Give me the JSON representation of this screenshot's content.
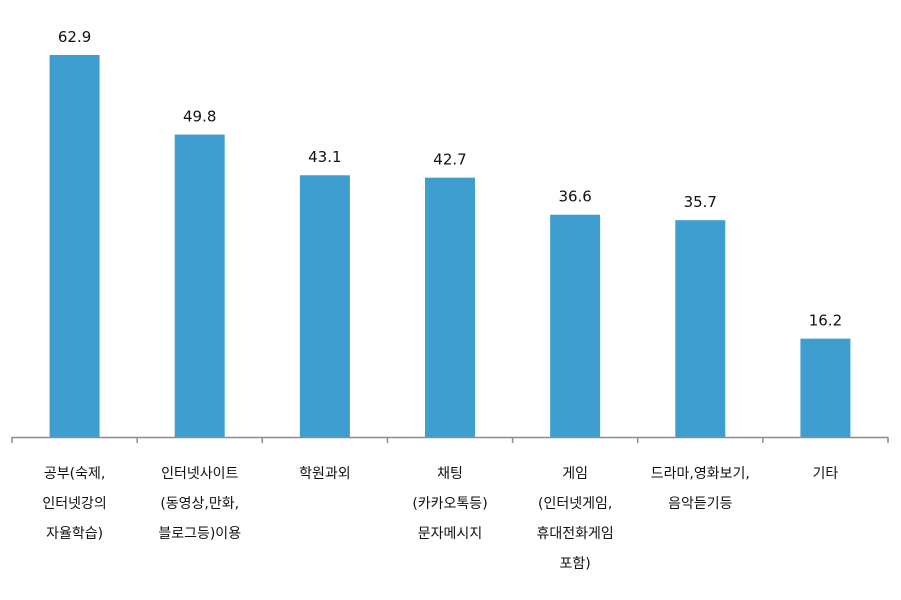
{
  "colors": {
    "bar": "#3E9ECF",
    "axis": "#8C8C8C",
    "text": "#111111",
    "background": "#FFFFFF"
  },
  "chart_data": {
    "type": "bar",
    "title": "",
    "xlabel": "",
    "ylabel": "",
    "grid": false,
    "legend": "none",
    "ylim": [
      0,
      70
    ],
    "categories": [
      [
        "공부(숙제,",
        "인터넷강의",
        "자율학습)"
      ],
      [
        "인터넷사이트",
        "(동영상,만화,",
        "블로그등)이용"
      ],
      [
        "학원과외"
      ],
      [
        "채팅",
        "(카카오톡등)",
        "문자메시지"
      ],
      [
        "게임",
        "(인터넷게임,",
        "휴대전화게임",
        "포함)"
      ],
      [
        "드라마,영화보기,",
        "음악듣기등"
      ],
      [
        "기타"
      ]
    ],
    "values": [
      62.9,
      49.8,
      43.1,
      42.7,
      36.6,
      35.7,
      16.2
    ],
    "value_labels": [
      "62.9",
      "49.8",
      "43.1",
      "42.7",
      "36.6",
      "35.7",
      "16.2"
    ]
  }
}
